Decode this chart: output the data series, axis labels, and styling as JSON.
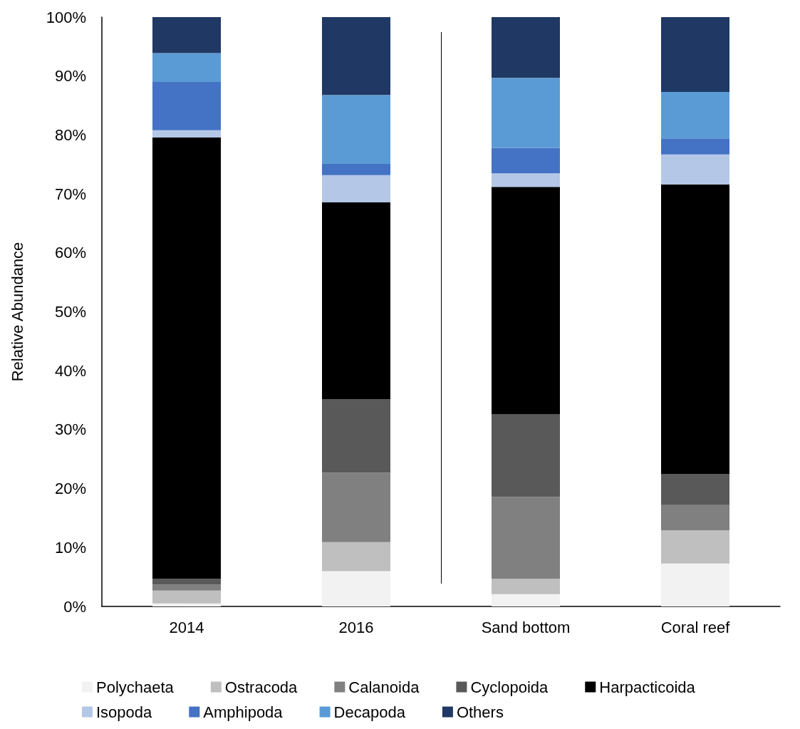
{
  "chart_data": {
    "type": "bar",
    "stacked": true,
    "ylabel": "Relative Abundance",
    "categories": [
      "2014",
      "2016",
      "Sand bottom",
      "Coral reef"
    ],
    "series": [
      {
        "name": "Polychaeta",
        "color": "#f2f2f2",
        "values": [
          0.5,
          6.0,
          2.1,
          7.3
        ]
      },
      {
        "name": "Ostracoda",
        "color": "#bfbfbf",
        "values": [
          2.2,
          4.9,
          2.6,
          5.6
        ]
      },
      {
        "name": "Calanoida",
        "color": "#808080",
        "values": [
          1.0,
          11.8,
          13.9,
          4.3
        ]
      },
      {
        "name": "Cyclopoida",
        "color": "#595959",
        "values": [
          1.0,
          12.5,
          14.0,
          5.3
        ]
      },
      {
        "name": "Harpacticoida",
        "color": "#000000",
        "values": [
          74.9,
          33.4,
          38.6,
          49.1
        ]
      },
      {
        "name": "Isopoda",
        "color": "#b4c7e7",
        "values": [
          1.2,
          4.6,
          2.3,
          5.1
        ]
      },
      {
        "name": "Amphipoda",
        "color": "#4472c4",
        "values": [
          8.2,
          1.9,
          4.3,
          2.7
        ]
      },
      {
        "name": "Decapoda",
        "color": "#5b9bd5",
        "values": [
          4.9,
          11.7,
          11.9,
          7.9
        ]
      },
      {
        "name": "Others",
        "color": "#203864",
        "values": [
          6.1,
          13.2,
          10.3,
          12.7
        ]
      }
    ],
    "ylim": [
      0,
      100
    ],
    "yticks": [
      {
        "value": 0,
        "label": "0%"
      },
      {
        "value": 10,
        "label": "10%"
      },
      {
        "value": 20,
        "label": "20%"
      },
      {
        "value": 30,
        "label": "30%"
      },
      {
        "value": 40,
        "label": "40%"
      },
      {
        "value": 50,
        "label": "50%"
      },
      {
        "value": 60,
        "label": "60%"
      },
      {
        "value": 70,
        "label": "70%"
      },
      {
        "value": 80,
        "label": "80%"
      },
      {
        "value": 90,
        "label": "90%"
      },
      {
        "value": 100,
        "label": "100%"
      }
    ],
    "grid": false,
    "legend": "bottom"
  }
}
